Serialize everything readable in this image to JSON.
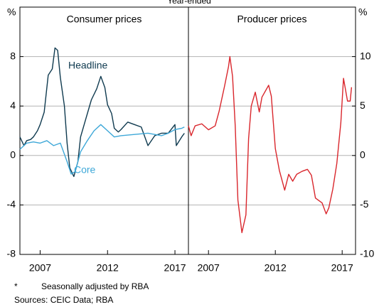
{
  "title": "Year-ended",
  "chart_data": [
    {
      "type": "line",
      "title": "Consumer prices",
      "ylabel": "%",
      "xlim": [
        2005.5,
        2018
      ],
      "xticks": [
        2007,
        2012,
        2017
      ],
      "ylim": [
        -8,
        12
      ],
      "yticks": [
        8,
        4,
        0,
        -4,
        -8
      ],
      "grid": true,
      "yaxis_side": "left",
      "series": [
        {
          "name": "Headline",
          "color": "#0f3a4f",
          "x": [
            2005.5,
            2005.8,
            2006,
            2006.3,
            2006.5,
            2006.8,
            2007,
            2007.3,
            2007.6,
            2007.9,
            2008.1,
            2008.3,
            2008.5,
            2008.8,
            2009,
            2009.2,
            2009.5,
            2009.8,
            2010,
            2010.4,
            2010.8,
            2011.2,
            2011.5,
            2011.8,
            2012,
            2012.3,
            2012.5,
            2012.8,
            2013,
            2013.5,
            2014,
            2014.5,
            2015,
            2015.5,
            2016,
            2016.5,
            2017,
            2017.1,
            2017.5,
            2017.7
          ],
          "values": [
            1.5,
            0.8,
            1.2,
            1.3,
            1.5,
            2.0,
            2.5,
            3.5,
            6.5,
            7.0,
            8.7,
            8.5,
            6.3,
            4.0,
            1.0,
            -1.0,
            -1.7,
            -0.5,
            1.5,
            3.0,
            4.5,
            5.4,
            6.4,
            5.5,
            4.1,
            3.4,
            2.2,
            1.9,
            2.1,
            2.7,
            2.5,
            2.3,
            0.8,
            1.6,
            1.8,
            1.8,
            2.5,
            0.8,
            1.5,
            1.8
          ]
        },
        {
          "name": "Core",
          "color": "#3ea8d8",
          "x": [
            2005.5,
            2006,
            2006.5,
            2007,
            2007.5,
            2008,
            2008.5,
            2009,
            2009.3,
            2009.6,
            2010,
            2010.5,
            2011,
            2011.5,
            2012,
            2012.5,
            2013,
            2014,
            2015,
            2016,
            2016.5,
            2017,
            2017.5,
            2017.7
          ],
          "values": [
            0.5,
            1.0,
            1.1,
            1.0,
            1.2,
            0.8,
            1.0,
            -0.5,
            -1.5,
            -1.3,
            0.3,
            1.2,
            2.0,
            2.5,
            2.0,
            1.5,
            1.6,
            1.7,
            1.8,
            1.6,
            1.8,
            2.1,
            2.2,
            2.3
          ]
        }
      ]
    },
    {
      "type": "line",
      "title": "Producer prices",
      "ylabel": "%",
      "xlim": [
        2005.5,
        2018
      ],
      "xticks": [
        2007,
        2012,
        2017
      ],
      "ylim": [
        -10,
        15
      ],
      "yticks": [
        10,
        5,
        0,
        -5,
        -10
      ],
      "grid": true,
      "yaxis_side": "right",
      "series": [
        {
          "color": "#d9262c",
          "x": [
            2005.5,
            2005.7,
            2006,
            2006.5,
            2007,
            2007.5,
            2007.8,
            2008.2,
            2008.5,
            2008.6,
            2008.8,
            2009,
            2009.2,
            2009.5,
            2009.8,
            2010,
            2010.2,
            2010.5,
            2010.8,
            2011,
            2011.5,
            2011.7,
            2012,
            2012.3,
            2012.7,
            2013,
            2013.3,
            2013.6,
            2014,
            2014.4,
            2014.7,
            2015,
            2015.3,
            2015.5,
            2015.8,
            2016,
            2016.3,
            2016.6,
            2016.9,
            2017.1,
            2017.4,
            2017.6,
            2017.7
          ],
          "values": [
            3.0,
            2.0,
            3.0,
            3.2,
            2.6,
            3.0,
            4.5,
            7.0,
            9.0,
            10.0,
            8.0,
            3.0,
            -4.5,
            -7.8,
            -6.0,
            1.7,
            5.0,
            6.4,
            4.4,
            5.9,
            7.1,
            6.0,
            0.7,
            -1.5,
            -3.5,
            -1.9,
            -2.6,
            -1.9,
            -1.6,
            -1.4,
            -2.0,
            -4.3,
            -4.6,
            -4.8,
            -5.9,
            -5.3,
            -3.4,
            -0.8,
            3.3,
            7.8,
            5.5,
            5.5,
            6.9
          ]
        }
      ]
    }
  ],
  "footnote": {
    "marker": "*",
    "text": "Seasonally adjusted by RBA"
  },
  "sources": "Sources: CEIC Data; RBA"
}
